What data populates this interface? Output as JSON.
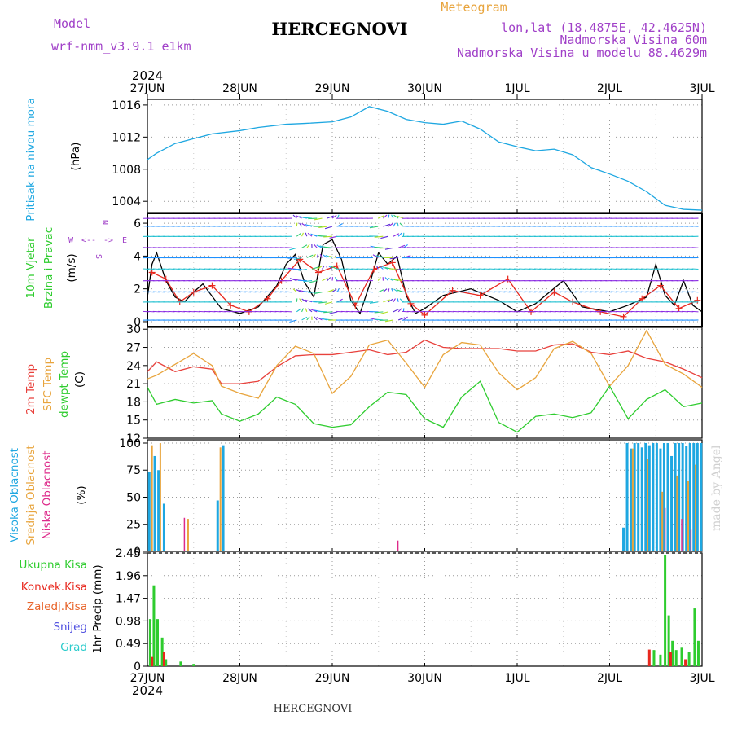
{
  "header": {
    "model_label": "Model",
    "model_name": "wrf-nmm_v3.9.1 e1km",
    "station": "HERCEGNOVI",
    "meteogram": "Meteogram",
    "lonlat": "lon,lat (18.4875E, 42.4625N)",
    "altitude": "Nadmorska Visina 60m",
    "model_altitude": "Nadmorska Visina u modelu 88.4629m",
    "year": "2024",
    "footer_station": "HERCEGNOVI",
    "credit": "made by Angel",
    "compass": [
      "N",
      "W",
      "E",
      "S"
    ]
  },
  "colors": {
    "pressure": "#1ea7e1",
    "wind_speed": "#000000",
    "gust": "#e8281e",
    "t2m": "#e8413c",
    "tsfc": "#e8a43c",
    "dewpt": "#2ecc2e",
    "high_cloud": "#1ea7e1",
    "mid_cloud": "#e8a43c",
    "low_cloud": "#dd2a8a",
    "total_precip": "#2ecc2e",
    "conv_precip": "#e8281e",
    "grad": "#2ecccc",
    "snow": "#5050e0",
    "purple_text": "#a040c8"
  },
  "chart_data": [
    {
      "type": "line",
      "panel": "pressure",
      "ylabel_lines": [
        "Pritisak na nivou mora",
        "(hPa)"
      ],
      "yticks": [
        1004,
        1008,
        1012,
        1016
      ],
      "ylim": [
        1002.6,
        1016.7
      ],
      "x_ticks": [
        "27JUN",
        "28JUN",
        "29JUN",
        "30JUN",
        "1JUL",
        "2JUL",
        "3JUL"
      ],
      "grid": true,
      "series": [
        {
          "x": [
            0,
            0.1,
            0.3,
            0.5,
            0.7,
            1.0,
            1.2,
            1.5,
            1.7,
            2.0,
            2.2,
            2.4,
            2.6,
            2.8,
            3.0,
            3.2,
            3.4,
            3.6,
            3.8,
            4.0,
            4.2,
            4.4,
            4.6,
            4.8,
            5.0,
            5.2,
            5.4,
            5.6,
            5.8,
            6.0
          ],
          "values": [
            1009.2,
            1010.0,
            1011.2,
            1011.8,
            1012.4,
            1012.8,
            1013.2,
            1013.6,
            1013.7,
            1013.9,
            1014.5,
            1015.8,
            1015.2,
            1014.2,
            1013.8,
            1013.6,
            1014.0,
            1013.0,
            1011.4,
            1010.8,
            1010.3,
            1010.5,
            1009.8,
            1008.2,
            1007.4,
            1006.5,
            1005.2,
            1003.5,
            1003.0,
            1002.9
          ]
        }
      ]
    },
    {
      "type": "line",
      "panel": "wind",
      "ylabel_lines": [
        "10m Vjetar",
        "Brzina i Pravac",
        "(m/s)"
      ],
      "yticks": [
        0,
        2,
        4,
        6
      ],
      "ylim": [
        -0.3,
        6.6
      ],
      "series": [
        {
          "name": "wind speed",
          "x": [
            0,
            0.05,
            0.1,
            0.2,
            0.3,
            0.4,
            0.5,
            0.6,
            0.8,
            1.0,
            1.2,
            1.4,
            1.5,
            1.6,
            1.7,
            1.8,
            1.9,
            2.0,
            2.1,
            2.2,
            2.3,
            2.4,
            2.5,
            2.6,
            2.7,
            2.8,
            2.9,
            3.0,
            3.2,
            3.5,
            3.8,
            4.0,
            4.2,
            4.5,
            4.7,
            5.0,
            5.2,
            5.4,
            5.5,
            5.6,
            5.7,
            5.8,
            5.9,
            6.0
          ],
          "values": [
            1.5,
            3.5,
            4.2,
            2.5,
            1.5,
            1.2,
            1.8,
            2.3,
            0.8,
            0.5,
            0.9,
            2.2,
            3.5,
            4.1,
            2.4,
            1.5,
            4.7,
            5.0,
            3.8,
            1.3,
            0.5,
            2.2,
            4.2,
            3.5,
            4.0,
            1.6,
            0.5,
            0.8,
            1.6,
            2.0,
            1.3,
            0.6,
            1.1,
            2.5,
            0.9,
            0.6,
            1.0,
            1.5,
            3.5,
            1.6,
            1.0,
            2.5,
            1.0,
            0.6
          ]
        },
        {
          "name": "gust",
          "x": [
            0.05,
            0.2,
            0.35,
            0.5,
            0.7,
            0.9,
            1.1,
            1.3,
            1.45,
            1.65,
            1.85,
            2.05,
            2.25,
            2.45,
            2.65,
            2.85,
            3.0,
            3.3,
            3.6,
            3.9,
            4.15,
            4.4,
            4.6,
            4.9,
            5.15,
            5.35,
            5.55,
            5.75,
            5.95
          ],
          "values": [
            3.0,
            2.6,
            1.2,
            1.8,
            2.2,
            1.0,
            0.6,
            1.4,
            2.5,
            3.8,
            3.0,
            3.4,
            1.0,
            3.2,
            3.6,
            1.1,
            0.4,
            1.9,
            1.6,
            2.6,
            0.6,
            1.8,
            1.2,
            0.6,
            0.3,
            1.4,
            2.2,
            0.8,
            1.3
          ]
        }
      ]
    },
    {
      "type": "line",
      "panel": "temperature",
      "ylabel_lines": [
        "2m Temp",
        "SFC Temp",
        "dewpt Temp",
        "(C)"
      ],
      "yticks": [
        12,
        15,
        18,
        21,
        24,
        27,
        30
      ],
      "ylim": [
        12,
        30.3
      ],
      "series": [
        {
          "name": "2m Temp",
          "x": [
            0,
            0.1,
            0.3,
            0.5,
            0.7,
            0.8,
            1.0,
            1.2,
            1.4,
            1.6,
            1.8,
            2.0,
            2.2,
            2.4,
            2.6,
            2.8,
            3.0,
            3.2,
            3.4,
            3.6,
            3.8,
            4.0,
            4.2,
            4.4,
            4.6,
            4.8,
            5.0,
            5.2,
            5.4,
            5.6,
            5.8,
            6.0
          ],
          "values": [
            23.0,
            24.6,
            23.0,
            23.8,
            23.4,
            21.0,
            21.0,
            21.4,
            23.8,
            25.6,
            25.8,
            25.8,
            26.2,
            26.6,
            25.8,
            26.2,
            28.2,
            27.0,
            26.8,
            26.8,
            26.8,
            26.4,
            26.4,
            27.4,
            27.6,
            26.2,
            25.8,
            26.4,
            25.2,
            24.6,
            23.4,
            22.0
          ]
        },
        {
          "name": "SFC Temp",
          "x": [
            0,
            0.1,
            0.3,
            0.5,
            0.7,
            0.8,
            1.0,
            1.2,
            1.4,
            1.6,
            1.8,
            2.0,
            2.2,
            2.4,
            2.6,
            2.8,
            3.0,
            3.2,
            3.4,
            3.6,
            3.8,
            4.0,
            4.2,
            4.4,
            4.6,
            4.8,
            5.0,
            5.2,
            5.4,
            5.6,
            5.8,
            6.0
          ],
          "values": [
            21.8,
            22.4,
            24.2,
            26.0,
            24.0,
            20.6,
            19.4,
            18.6,
            24.0,
            27.2,
            26.0,
            19.4,
            22.2,
            27.4,
            28.2,
            24.4,
            20.4,
            25.8,
            27.8,
            27.4,
            22.8,
            20.0,
            22.0,
            26.8,
            28.0,
            26.0,
            20.6,
            24.0,
            29.8,
            24.2,
            22.6,
            20.4
          ]
        },
        {
          "name": "dewpt Temp",
          "x": [
            0,
            0.1,
            0.3,
            0.5,
            0.7,
            0.8,
            1.0,
            1.2,
            1.4,
            1.6,
            1.8,
            2.0,
            2.2,
            2.4,
            2.6,
            2.8,
            3.0,
            3.2,
            3.4,
            3.6,
            3.8,
            4.0,
            4.2,
            4.4,
            4.6,
            4.8,
            5.0,
            5.2,
            5.4,
            5.6,
            5.8,
            6.0
          ],
          "values": [
            20.4,
            17.6,
            18.4,
            17.8,
            18.2,
            16.0,
            14.8,
            16.0,
            18.8,
            17.6,
            14.4,
            13.8,
            14.2,
            17.2,
            19.6,
            19.2,
            15.2,
            13.8,
            18.8,
            21.4,
            14.6,
            13.0,
            15.6,
            16.0,
            15.4,
            16.2,
            20.6,
            15.2,
            18.4,
            20.0,
            17.2,
            17.8
          ]
        }
      ]
    },
    {
      "type": "bar",
      "panel": "cloud",
      "ylabel_lines": [
        "Visoka Oblacnost",
        "Srednja Oblacnost",
        "Niska Oblacnost",
        "(%)"
      ],
      "yticks": [
        0,
        25,
        50,
        75,
        100
      ],
      "ylim": [
        0,
        103
      ],
      "series": [
        {
          "name": "Visoka Oblacnost",
          "x": [
            0.02,
            0.08,
            0.12,
            0.18,
            0.76,
            0.82,
            5.15,
            5.19,
            5.23,
            5.27,
            5.31,
            5.35,
            5.39,
            5.43,
            5.47,
            5.51,
            5.55,
            5.59,
            5.63,
            5.67,
            5.71,
            5.75,
            5.79,
            5.83,
            5.87,
            5.91,
            5.95,
            5.99
          ],
          "values": [
            73,
            88,
            75,
            44,
            47,
            98,
            22,
            100,
            95,
            100,
            100,
            96,
            100,
            98,
            100,
            100,
            95,
            100,
            100,
            88,
            100,
            100,
            100,
            97,
            100,
            100,
            100,
            100
          ]
        },
        {
          "name": "Srednja Oblacnost",
          "x": [
            0.05,
            0.14,
            0.44,
            0.79,
            5.25,
            5.41,
            5.57,
            5.73,
            5.85,
            5.93
          ],
          "values": [
            98,
            100,
            30,
            96,
            95,
            85,
            55,
            70,
            65,
            80
          ]
        },
        {
          "name": "Niska Oblacnost",
          "x": [
            0.4,
            2.71,
            5.6,
            5.78,
            5.88
          ],
          "values": [
            31,
            10,
            40,
            30,
            20
          ]
        }
      ]
    },
    {
      "type": "bar",
      "panel": "precipitation",
      "ylabel_lines": [
        "1hr Precip (mm)"
      ],
      "legend": [
        "Ukupna Kisa",
        "Konvek.Kisa",
        "Zaledj.Kisa",
        "Snijeg",
        "Grad"
      ],
      "yticks": [
        0,
        0.49,
        0.98,
        1.47,
        1.96,
        2.45
      ],
      "ylim": [
        0,
        2.45
      ],
      "series": [
        {
          "name": "Ukupna Kisa",
          "x": [
            0.03,
            0.07,
            0.11,
            0.16,
            0.2,
            0.36,
            0.5,
            5.48,
            5.55,
            5.6,
            5.64,
            5.68,
            5.72,
            5.78,
            5.86,
            5.92,
            5.96
          ],
          "values": [
            1.02,
            1.75,
            1.02,
            0.62,
            0.15,
            0.1,
            0.05,
            0.35,
            0.25,
            2.4,
            1.1,
            0.55,
            0.35,
            0.4,
            0.3,
            1.25,
            0.55
          ]
        },
        {
          "name": "Konvek.Kisa",
          "x": [
            0.05,
            0.18,
            5.43,
            5.66,
            5.82
          ],
          "values": [
            0.2,
            0.3,
            0.36,
            0.3,
            0.15
          ]
        }
      ]
    }
  ]
}
